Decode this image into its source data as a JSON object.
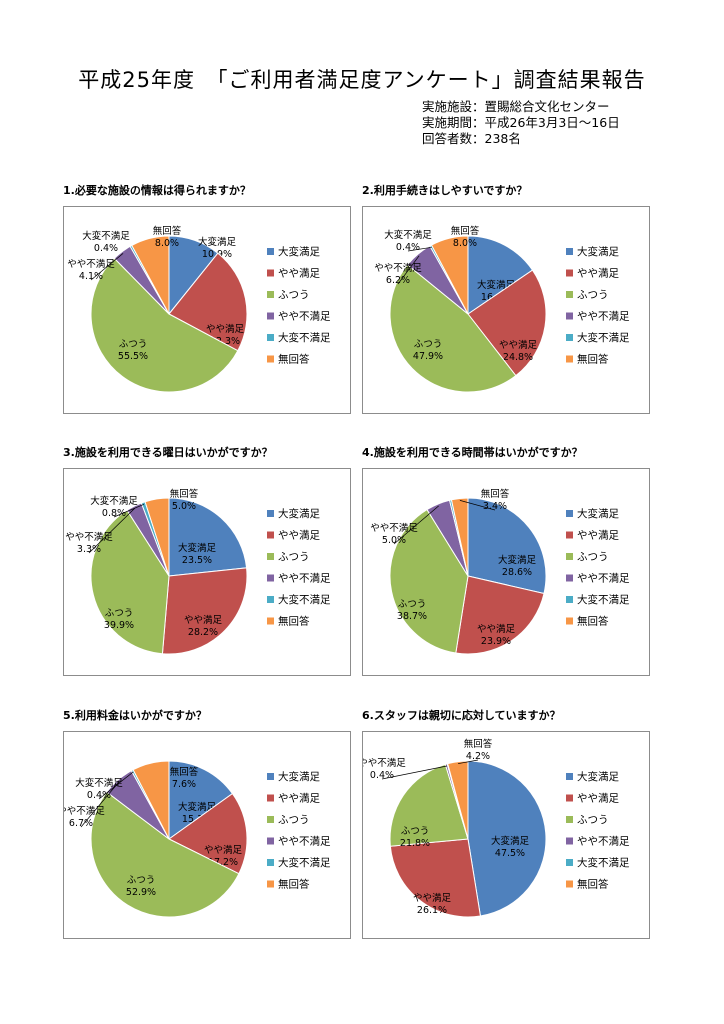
{
  "header": {
    "title": "平成25年度　「ご利用者満足度アンケート」調査結果報告",
    "venue": "実施施設：置賜総合文化センター",
    "period": "実施期間：平成26年3月3日～16日",
    "respondents": "回答者数：238名"
  },
  "colors": {
    "大変満足": "#4f81bd",
    "やや満足": "#c0504d",
    "ふつう": "#9bbb59",
    "やや不満足": "#8064a2",
    "大変不満足": "#4bacc6",
    "無回答": "#f79646"
  },
  "chart_data": [
    {
      "type": "pie",
      "title": "1.必要な施設の情報は得られますか？",
      "categories": [
        "大変満足",
        "やや満足",
        "ふつう",
        "やや不満足",
        "大変不満足",
        "無回答"
      ],
      "values": [
        10.9,
        22.3,
        55.5,
        4.1,
        0.4,
        8.0
      ],
      "value_labels": [
        "10.9%",
        "22.3%",
        "55.5%",
        "4.1%",
        "0.4%",
        "8.0%"
      ],
      "legend": "right"
    },
    {
      "type": "pie",
      "title": "2.利用手続きはしやすいですか？",
      "categories": [
        "大変満足",
        "やや満足",
        "ふつう",
        "やや不満足",
        "大変不満足",
        "無回答"
      ],
      "values": [
        16.0,
        24.8,
        47.9,
        6.2,
        0.4,
        8.0
      ],
      "value_labels": [
        "16.0%",
        "24.8%",
        "47.9%",
        "6.2%",
        "0.4%",
        "8.0%"
      ],
      "legend": "right"
    },
    {
      "type": "pie",
      "title": "3.施設を利用できる曜日はいかがですか？",
      "categories": [
        "大変満足",
        "やや満足",
        "ふつう",
        "やや不満足",
        "大変不満足",
        "無回答"
      ],
      "values": [
        23.5,
        28.2,
        39.9,
        3.3,
        0.8,
        5.0
      ],
      "value_labels": [
        "23.5%",
        "28.2%",
        "39.9%",
        "3.3%",
        "0.8%",
        "5.0%"
      ],
      "legend": "right"
    },
    {
      "type": "pie",
      "title": "4.施設を利用できる時間帯はいかがですか？",
      "categories": [
        "大変満足",
        "やや満足",
        "ふつう",
        "やや不満足",
        "大変不満足",
        "無回答"
      ],
      "values": [
        28.6,
        23.9,
        38.7,
        5.0,
        0.4,
        3.4
      ],
      "value_labels": [
        "28.6%",
        "23.9%",
        "38.7%",
        "5.0%",
        "",
        "3.4%"
      ],
      "legend": "right"
    },
    {
      "type": "pie",
      "title": "5.利用料金はいかがですか？",
      "categories": [
        "大変満足",
        "やや満足",
        "ふつう",
        "やや不満足",
        "大変不満足",
        "無回答"
      ],
      "values": [
        15.1,
        17.2,
        52.9,
        6.7,
        0.4,
        7.6
      ],
      "value_labels": [
        "15.1%",
        "17.2%",
        "52.9%",
        "6.7%",
        "0.4%",
        "7.6%"
      ],
      "legend": "right"
    },
    {
      "type": "pie",
      "title": "6.スタッフは親切に応対していますか？",
      "categories": [
        "大変満足",
        "やや満足",
        "ふつう",
        "やや不満足",
        "大変不満足",
        "無回答"
      ],
      "values": [
        47.5,
        26.1,
        21.8,
        0.4,
        0.1,
        4.2
      ],
      "value_labels": [
        "47.5%",
        "26.1%",
        "21.8%",
        "0.4%",
        "",
        "4.2%"
      ],
      "legend": "right"
    }
  ]
}
